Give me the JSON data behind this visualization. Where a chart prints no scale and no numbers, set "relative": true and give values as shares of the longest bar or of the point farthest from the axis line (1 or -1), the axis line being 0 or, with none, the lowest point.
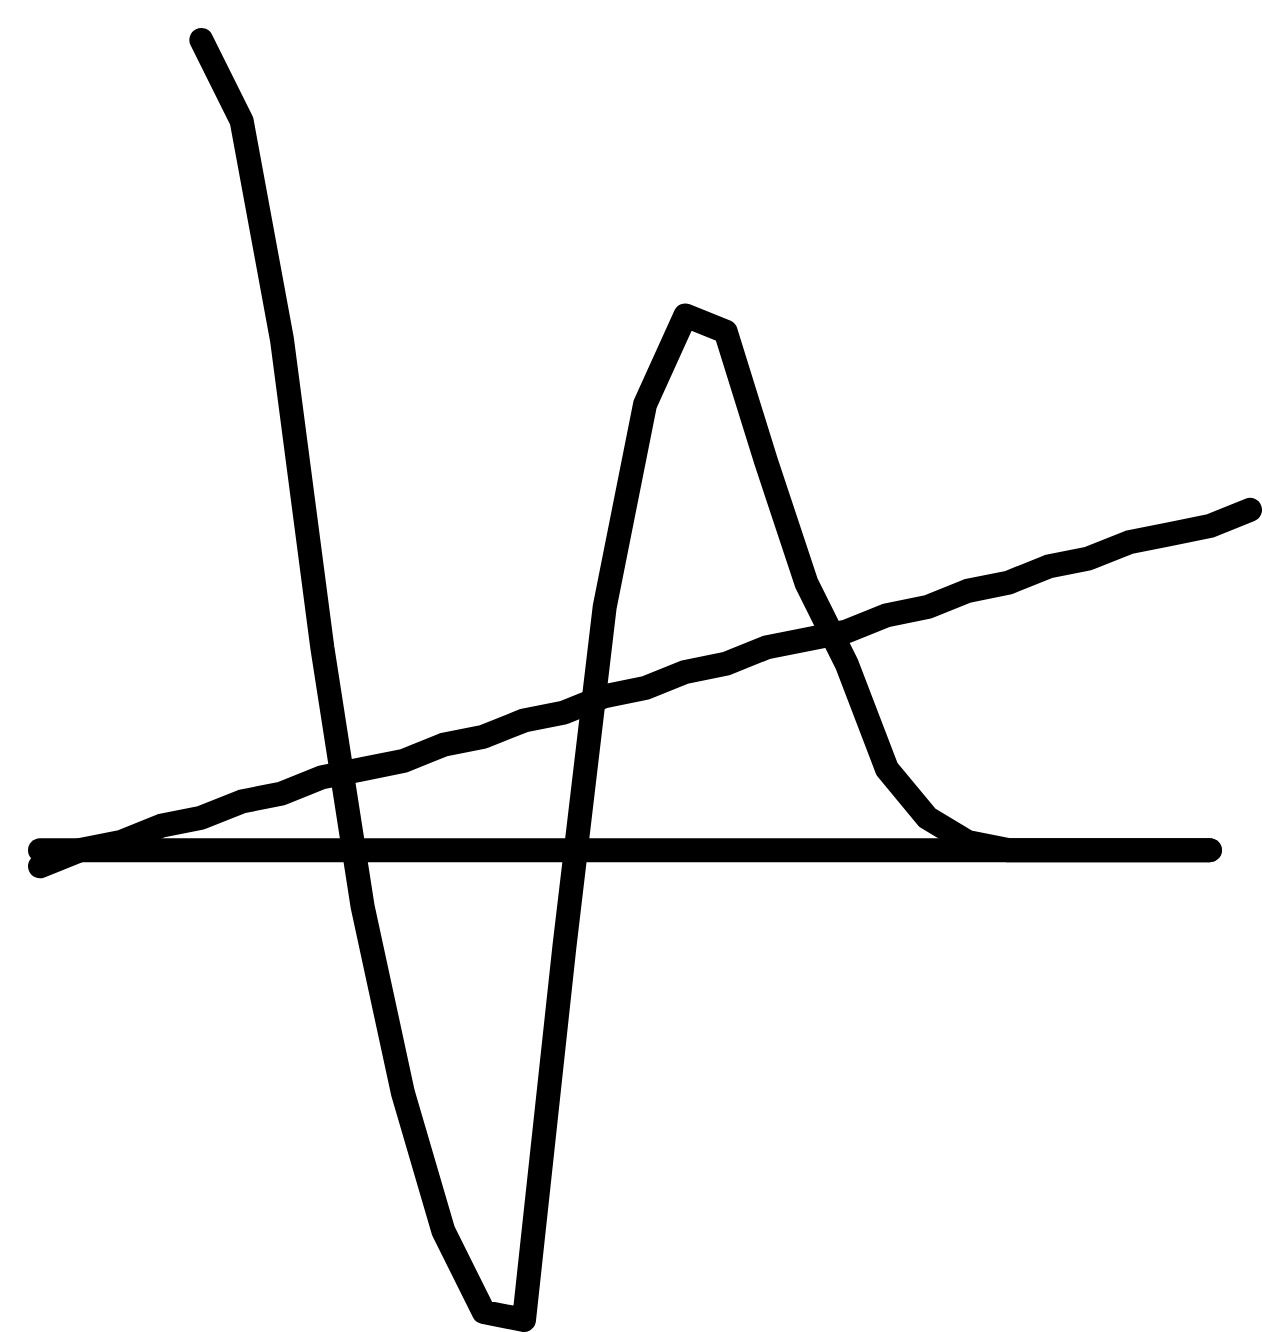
{
  "chart_data": {
    "type": "line",
    "relative": true,
    "legend": false,
    "marker": "none",
    "line_style": "solid",
    "categories": [
      null,
      null,
      null,
      null,
      null,
      null,
      null,
      null,
      null,
      null,
      null,
      null,
      null,
      null,
      null,
      null,
      null,
      null,
      null,
      null,
      null,
      null,
      null,
      null,
      null,
      null,
      null,
      null,
      null,
      null,
      null
    ],
    "series": [
      {
        "color": "#000000",
        "values": [
          null,
          null,
          null,
          null,
          1.0,
          0.9,
          0.63,
          0.25,
          -0.07,
          -0.3,
          -0.47,
          -0.57,
          -0.58,
          -0.12,
          0.3,
          0.55,
          0.66,
          0.64,
          0.48,
          0.33,
          0.23,
          0.1,
          0.04,
          0.01,
          0,
          0,
          0,
          0,
          0,
          0,
          null
        ]
      },
      {
        "color": "#000000",
        "values": [
          -0.02,
          0,
          0.01,
          0.03,
          0.04,
          0.06,
          0.07,
          0.09,
          0.1,
          0.11,
          0.13,
          0.14,
          0.16,
          0.17,
          0.19,
          0.2,
          0.22,
          0.23,
          0.25,
          0.26,
          0.27,
          0.29,
          0.3,
          0.32,
          0.33,
          0.35,
          0.36,
          0.38,
          0.39,
          0.4,
          0.42
        ]
      }
    ]
  }
}
